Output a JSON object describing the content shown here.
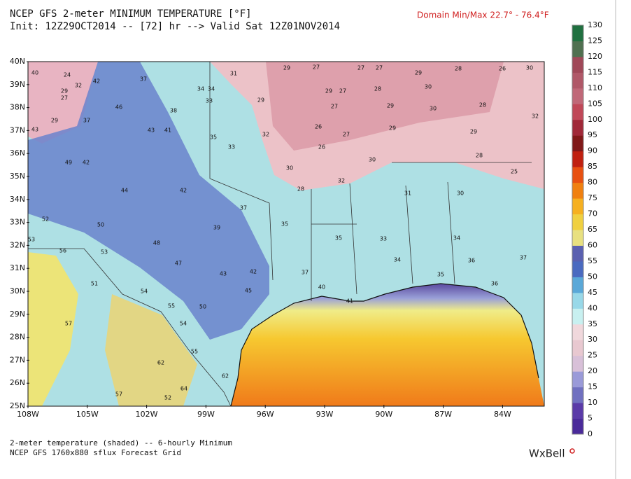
{
  "header": {
    "title": "NCEP GFS 2-meter MINIMUM TEMPERATURE [°F]",
    "init": "Init: 12Z29OCT2014 -- [72] hr --> Valid Sat 12Z01NOV2014",
    "domain_minmax": "Domain Min/Max  22.7° -  76.4°F"
  },
  "map": {
    "lat_labels": [
      "40N",
      "39N",
      "38N",
      "37N",
      "36N",
      "35N",
      "34N",
      "33N",
      "32N",
      "31N",
      "30N",
      "29N",
      "28N",
      "27N",
      "26N",
      "25N"
    ],
    "lon_labels": [
      "108W",
      "105W",
      "102W",
      "99W",
      "96W",
      "93W",
      "90W",
      "87W",
      "84W"
    ],
    "stations": [
      "40",
      "24",
      "32",
      "42",
      "29",
      "27",
      "37",
      "34",
      "34",
      "31",
      "29",
      "27",
      "27",
      "27",
      "29",
      "28",
      "26",
      "30",
      "29",
      "27",
      "28",
      "30",
      "28",
      "46",
      "38",
      "33",
      "29",
      "27",
      "29",
      "30",
      "32",
      "43",
      "29",
      "37",
      "43",
      "41",
      "35",
      "32",
      "26",
      "27",
      "29",
      "29",
      "28",
      "25",
      "49",
      "42",
      "33",
      "30",
      "26",
      "30",
      "44",
      "42",
      "37",
      "28",
      "32",
      "31",
      "30",
      "52",
      "50",
      "48",
      "39",
      "35",
      "35",
      "33",
      "34",
      "53",
      "56",
      "53",
      "47",
      "43",
      "42",
      "37",
      "34",
      "36",
      "37",
      "51",
      "54",
      "50",
      "45",
      "40",
      "41",
      "35",
      "36",
      "57",
      "55",
      "54",
      "55",
      "62",
      "57",
      "52",
      "64",
      "62"
    ]
  },
  "colorbar": {
    "ticks": [
      0,
      5,
      10,
      15,
      20,
      25,
      30,
      35,
      40,
      45,
      50,
      55,
      60,
      65,
      70,
      75,
      80,
      85,
      90,
      95,
      100,
      105,
      110,
      115,
      120,
      125,
      130
    ]
  },
  "footer": {
    "line1": "2-meter temperature (shaded) -- 6-hourly Minimum",
    "line2": "NCEP GFS 1760x880 sflux Forecast Grid",
    "brand": "WxBell"
  }
}
